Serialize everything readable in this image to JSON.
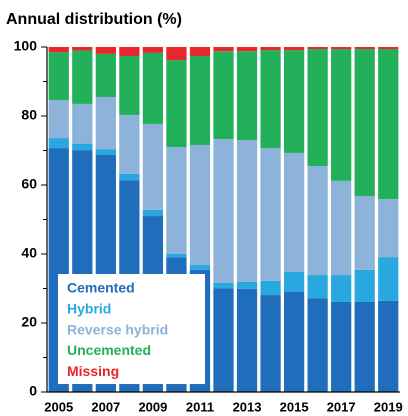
{
  "chart_data": {
    "type": "stacked_bar",
    "title": "Annual distribution (%)",
    "categories": [
      "2005",
      null,
      "2007",
      null,
      "2009",
      null,
      "2011",
      null,
      "2013",
      null,
      "2015",
      null,
      "2017",
      null,
      "2019"
    ],
    "series": [
      {
        "name": "Cemented",
        "color": "#1f6dbb",
        "values": [
          70.7,
          70,
          68.7,
          61.4,
          51,
          39,
          35.4,
          30.1,
          29.9,
          28.1,
          29,
          27.2,
          26.1,
          26.1,
          26.4
        ]
      },
      {
        "name": "Hybrid",
        "color": "#29a8e0",
        "values": [
          2.9,
          2,
          1.7,
          1.8,
          1.8,
          1,
          1.4,
          1.5,
          2,
          4.1,
          5.8,
          6.7,
          7.8,
          9.3,
          12.7
        ]
      },
      {
        "name": "Reverse hybrid",
        "color": "#8db3db",
        "values": [
          11,
          11.5,
          15.1,
          17.1,
          24.9,
          31,
          34.8,
          41.7,
          41.1,
          38.5,
          34.5,
          31.6,
          27.3,
          21.4,
          16.8
        ]
      },
      {
        "name": "Uncemented",
        "color": "#22b15a",
        "values": [
          13.9,
          15.5,
          12.5,
          17.1,
          20.6,
          25.2,
          25.8,
          25.5,
          25.8,
          28.4,
          29.8,
          33.9,
          38.2,
          42.6,
          43.5
        ]
      },
      {
        "name": "Missing",
        "color": "#e8262b",
        "values": [
          1.5,
          1,
          2,
          2.6,
          1.7,
          3.8,
          2.6,
          1.2,
          1.2,
          0.9,
          0.9,
          0.6,
          0.6,
          0.6,
          0.6
        ]
      }
    ],
    "ylim": [
      0,
      100
    ],
    "yticks": [
      0,
      20,
      40,
      60,
      80,
      100
    ],
    "yticks_minor": [
      10,
      30,
      50,
      70,
      90
    ],
    "legend": "lower left"
  }
}
